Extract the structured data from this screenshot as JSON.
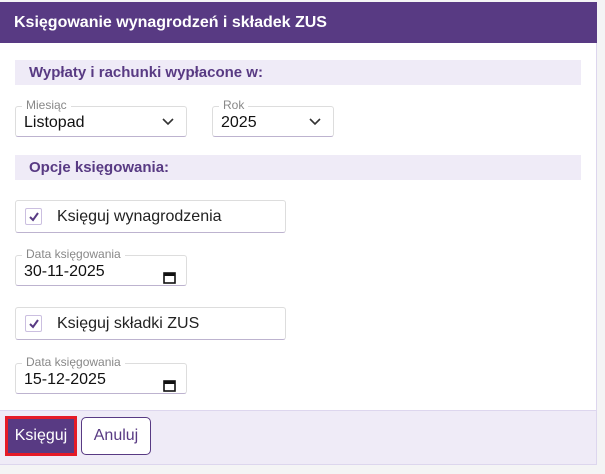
{
  "dialog": {
    "title": "Księgowanie wynagrodzeń i składek ZUS"
  },
  "period": {
    "heading": "Wypłaty i rachunki wypłacone w:",
    "month": {
      "label": "Miesiąc",
      "value": "Listopad"
    },
    "year": {
      "label": "Rok",
      "value": "2025"
    }
  },
  "options": {
    "heading": "Opcje księgowania:",
    "salaries": {
      "label": "Księguj wynagrodzenia",
      "checked": true,
      "date_label": "Data księgowania",
      "date_value": "30-11-2025"
    },
    "zus": {
      "label": "Księguj składki ZUS",
      "checked": true,
      "date_label": "Data księgowania",
      "date_value": "15-12-2025"
    }
  },
  "footer": {
    "submit_label": "Księguj",
    "cancel_label": "Anuluj"
  },
  "colors": {
    "accent": "#583a83",
    "highlight": "#e51a27",
    "section_bg": "#efebf7"
  }
}
